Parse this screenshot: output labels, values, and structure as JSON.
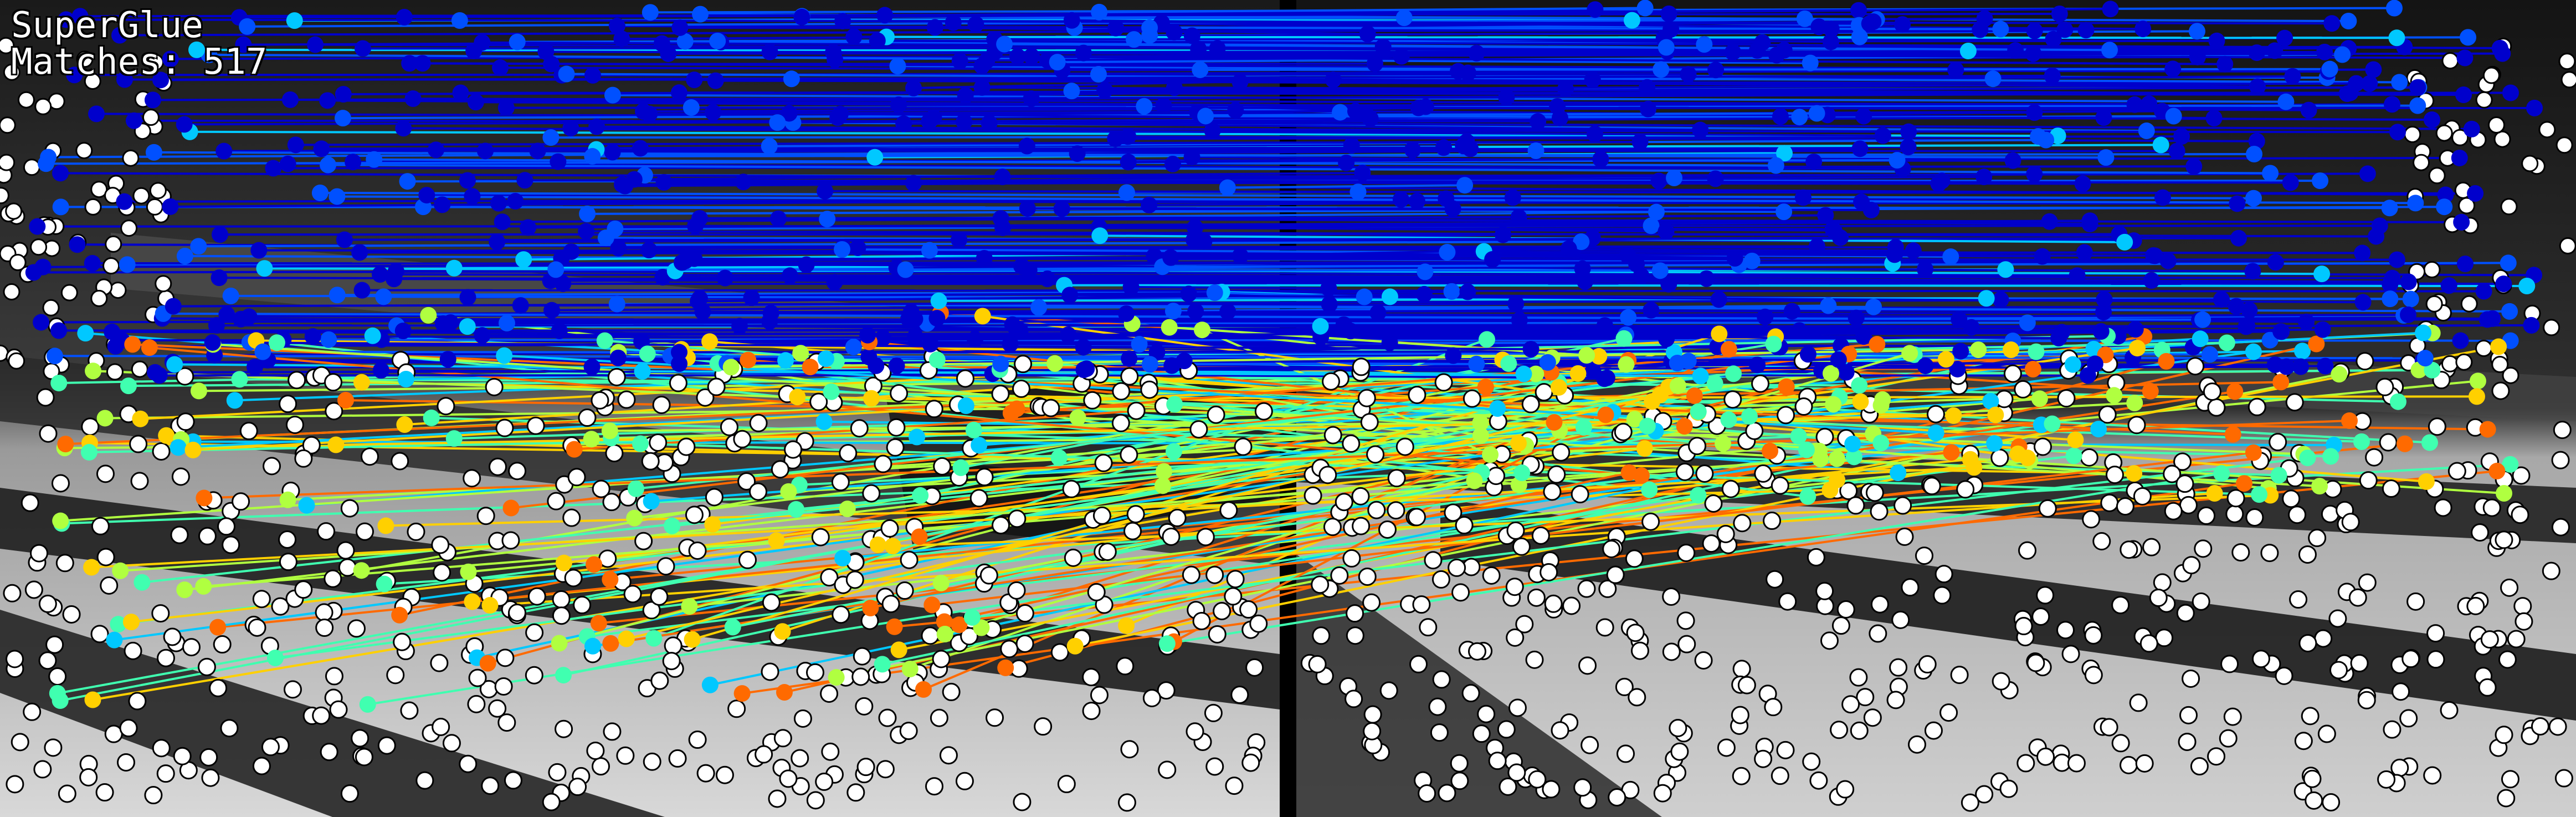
{
  "title": "SuperGlue",
  "matches_label": "Matches:",
  "matches_count": "517",
  "overlay": {
    "text_color": "#ffffff",
    "keypoint_fill": "#ffffff",
    "keypoint_stroke": "#000000",
    "separator_color": "#000000",
    "match_colormap": [
      "#0000cc",
      "#0050ff",
      "#00c8ff",
      "#40ffb0",
      "#b0ff40",
      "#ffd000",
      "#ff6a00"
    ]
  }
}
